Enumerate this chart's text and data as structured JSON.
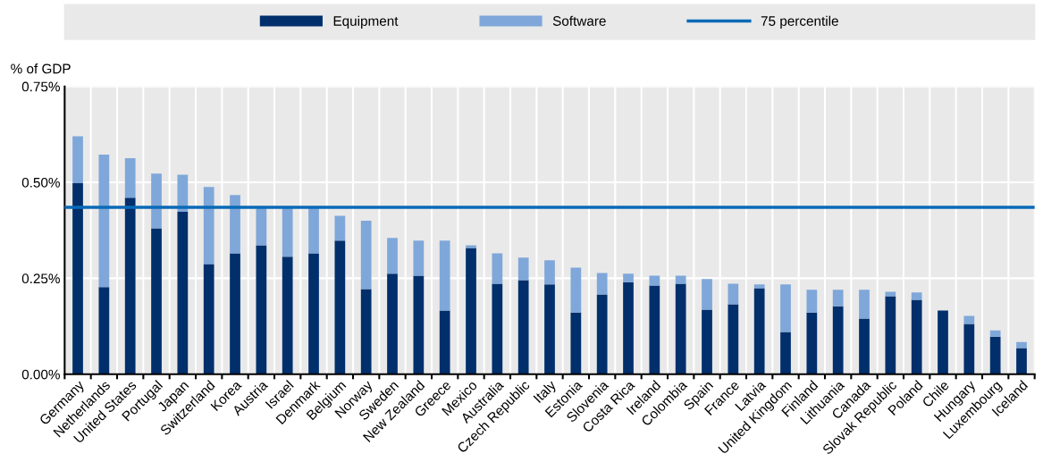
{
  "chart_data": {
    "type": "bar",
    "stacked": true,
    "ylabel": "% of GDP",
    "categories": [
      "Germany",
      "Netherlands",
      "United States",
      "Portugal",
      "Japan",
      "Switzerland",
      "Korea",
      "Austria",
      "Israel",
      "Denmark",
      "Belgium",
      "Norway",
      "Sweden",
      "New Zealand",
      "Greece",
      "Mexico",
      "Australia",
      "Czech Republic",
      "Italy",
      "Estonia",
      "Slovenia",
      "Costa Rica",
      "Ireland",
      "Colombia",
      "Spain",
      "France",
      "Latvia",
      "United Kingdom",
      "Finland",
      "Lithuania",
      "Canada",
      "Slovak Republic",
      "Poland",
      "Chile",
      "Hungary",
      "Luxembourg",
      "Iceland"
    ],
    "series": [
      {
        "name": "Equipment",
        "color": "#002f6c",
        "values": [
          0.498,
          0.227,
          0.46,
          0.38,
          0.423,
          0.287,
          0.315,
          0.336,
          0.306,
          0.315,
          0.348,
          0.222,
          0.262,
          0.257,
          0.166,
          0.329,
          0.236,
          0.245,
          0.234,
          0.161,
          0.208,
          0.24,
          0.231,
          0.236,
          0.168,
          0.182,
          0.224,
          0.11,
          0.161,
          0.177,
          0.145,
          0.203,
          0.194,
          0.166,
          0.131,
          0.098,
          0.068
        ]
      },
      {
        "name": "Software",
        "color": "#7fa7d9",
        "values": [
          0.122,
          0.345,
          0.103,
          0.143,
          0.097,
          0.201,
          0.152,
          0.099,
          0.129,
          0.12,
          0.065,
          0.178,
          0.093,
          0.091,
          0.182,
          0.007,
          0.079,
          0.059,
          0.063,
          0.117,
          0.056,
          0.022,
          0.026,
          0.021,
          0.08,
          0.054,
          0.01,
          0.124,
          0.059,
          0.043,
          0.075,
          0.012,
          0.019,
          0.0,
          0.021,
          0.016,
          0.016
        ]
      }
    ],
    "ref_lines": [
      {
        "axis": "y",
        "value": 0.435,
        "label": "75 percentile",
        "color": "#0a6ab7"
      }
    ],
    "ylim": [
      0,
      0.75
    ],
    "yticks": [
      {
        "value": 0,
        "label": "0.00%"
      },
      {
        "value": 0.25,
        "label": "0.25%"
      },
      {
        "value": 0.5,
        "label": "0.50%"
      },
      {
        "value": 0.75,
        "label": "0.75%"
      }
    ],
    "grid": true,
    "legend": "top"
  }
}
